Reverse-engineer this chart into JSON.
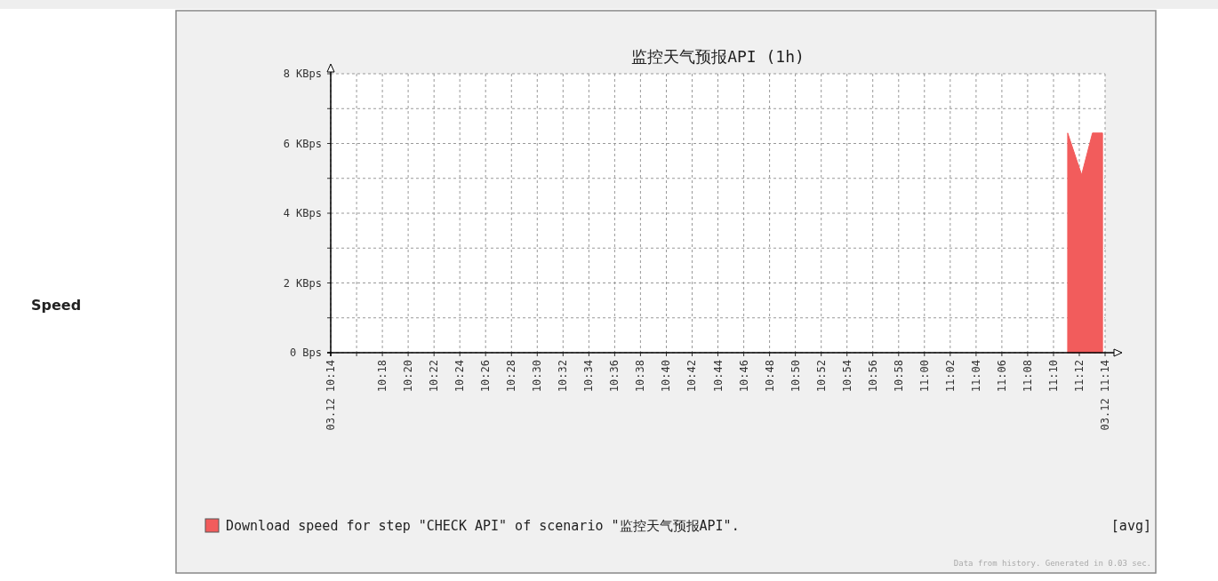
{
  "chart_data": {
    "type": "area",
    "title": "监控天气预报API (1h)",
    "series": [
      {
        "name": "Download speed for step \"CHECK API\" of scenario \"监控天气预报API\".",
        "color": "#f25c5c",
        "x": [
          11.185,
          11.203,
          11.217,
          11.23
        ],
        "values": [
          6.3,
          5.1,
          6.3,
          6.3
        ]
      }
    ],
    "xlim": [
      10.2333,
      11.2333
    ],
    "ylim": [
      0,
      8
    ],
    "xticks": [
      {
        "value": 10.2333,
        "label": "03.12 10:14"
      },
      {
        "value": 10.2667,
        "label": null
      },
      {
        "value": 10.3,
        "label": "10:18"
      },
      {
        "value": 10.3333,
        "label": "10:20"
      },
      {
        "value": 10.3667,
        "label": "10:22"
      },
      {
        "value": 10.4,
        "label": "10:24"
      },
      {
        "value": 10.4333,
        "label": "10:26"
      },
      {
        "value": 10.4667,
        "label": "10:28"
      },
      {
        "value": 10.5,
        "label": "10:30"
      },
      {
        "value": 10.5333,
        "label": "10:32"
      },
      {
        "value": 10.5667,
        "label": "10:34"
      },
      {
        "value": 10.6,
        "label": "10:36"
      },
      {
        "value": 10.6333,
        "label": "10:38"
      },
      {
        "value": 10.6667,
        "label": "10:40"
      },
      {
        "value": 10.7,
        "label": "10:42"
      },
      {
        "value": 10.7333,
        "label": "10:44"
      },
      {
        "value": 10.7667,
        "label": "10:46"
      },
      {
        "value": 10.8,
        "label": "10:48"
      },
      {
        "value": 10.8333,
        "label": "10:50"
      },
      {
        "value": 10.8667,
        "label": "10:52"
      },
      {
        "value": 10.9,
        "label": "10:54"
      },
      {
        "value": 10.9333,
        "label": "10:56"
      },
      {
        "value": 10.9667,
        "label": "10:58"
      },
      {
        "value": 11,
        "label": "11:00"
      },
      {
        "value": 11.0333,
        "label": "11:02"
      },
      {
        "value": 11.0667,
        "label": "11:04"
      },
      {
        "value": 11.1,
        "label": "11:06"
      },
      {
        "value": 11.1333,
        "label": "11:08"
      },
      {
        "value": 11.1667,
        "label": "11:10"
      },
      {
        "value": 11.2,
        "label": "11:12"
      },
      {
        "value": 11.2333,
        "label": "03.12 11:14"
      }
    ],
    "yticks": [
      {
        "value": 0,
        "label": "0 Bps"
      },
      {
        "value": 1,
        "label": null
      },
      {
        "value": 2,
        "label": "2 KBps"
      },
      {
        "value": 3,
        "label": null
      },
      {
        "value": 4,
        "label": "4 KBps"
      },
      {
        "value": 5,
        "label": null
      },
      {
        "value": 6,
        "label": "6 KBps"
      },
      {
        "value": 7,
        "label": null
      },
      {
        "value": 8,
        "label": "8 KBps"
      }
    ],
    "grid": true,
    "legend": "bottom",
    "annotations": [
      "Speed",
      "[avg]",
      "Data from history. Generated in 0.03 sec."
    ]
  }
}
